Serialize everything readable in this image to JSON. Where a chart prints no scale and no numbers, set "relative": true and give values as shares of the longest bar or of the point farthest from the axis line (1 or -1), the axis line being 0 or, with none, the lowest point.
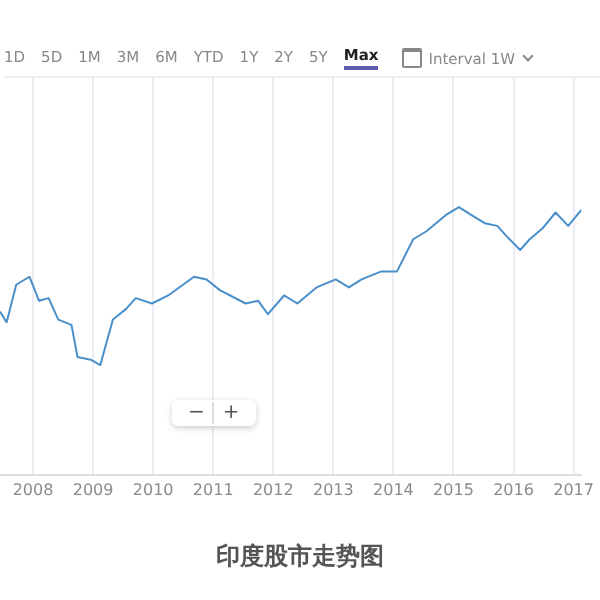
{
  "chart_data": {
    "type": "line",
    "title": "印度股市走势图",
    "relative": true,
    "grid": "x",
    "legend": false,
    "marker": "none",
    "line_style": "solid",
    "tick_labels": "x",
    "annotations": [
      "1D",
      "5D",
      "1M",
      "3M",
      "6M",
      "YTD",
      "1Y",
      "2Y",
      "5Y",
      "Max",
      "Interval 1W",
      "−",
      "+"
    ],
    "xlim": [
      2007.45,
      2017.13
    ],
    "xticks": [
      2008,
      2009,
      2010,
      2011,
      2012,
      2013,
      2014,
      2015,
      2016,
      2017
    ],
    "series": [
      {
        "color": "#4a8fc9",
        "x": [
          2007.45,
          2007.56,
          2007.72,
          2007.94,
          2008.1,
          2008.26,
          2008.42,
          2008.64,
          2008.74,
          2008.96,
          2009.12,
          2009.33,
          2009.55,
          2009.71,
          2009.98,
          2010.25,
          2010.68,
          2010.89,
          2011.11,
          2011.54,
          2011.75,
          2011.91,
          2012.18,
          2012.4,
          2012.72,
          2013.04,
          2013.26,
          2013.47,
          2013.8,
          2014.06,
          2014.33,
          2014.55,
          2014.87,
          2015.09,
          2015.3,
          2015.52,
          2015.73,
          2015.89,
          2016.11,
          2016.27,
          2016.48,
          2016.7,
          2016.91,
          2017.13
        ],
        "values": [
          0.61,
          0.57,
          0.71,
          0.74,
          0.65,
          0.66,
          0.58,
          0.56,
          0.44,
          0.43,
          0.41,
          0.58,
          0.62,
          0.66,
          0.64,
          0.67,
          0.74,
          0.73,
          0.69,
          0.64,
          0.65,
          0.6,
          0.67,
          0.64,
          0.7,
          0.73,
          0.7,
          0.73,
          0.76,
          0.76,
          0.88,
          0.91,
          0.97,
          1,
          0.97,
          0.94,
          0.93,
          0.89,
          0.84,
          0.88,
          0.92,
          0.98,
          0.93,
          0.99
        ]
      }
    ]
  }
}
